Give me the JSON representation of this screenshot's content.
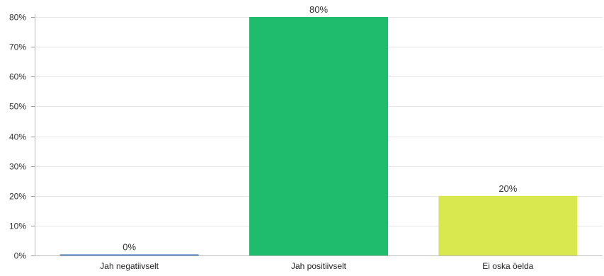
{
  "chart_data": {
    "type": "bar",
    "title": "",
    "xlabel": "",
    "ylabel": "",
    "categories": [
      "Jah negatiivselt",
      "Jah positiivselt",
      "Ei oska öelda"
    ],
    "values": [
      0,
      80,
      20
    ],
    "value_labels": [
      "0%",
      "80%",
      "20%"
    ],
    "colors": [
      "#2f6fba",
      "#1fbc6e",
      "#d9e84f"
    ],
    "ylim": [
      0,
      80
    ],
    "yticks": [
      0,
      10,
      20,
      30,
      40,
      50,
      60,
      70,
      80
    ],
    "ytick_labels": [
      "0%",
      "10%",
      "20%",
      "30%",
      "40%",
      "50%",
      "60%",
      "70%",
      "80%"
    ],
    "grid": true,
    "legend": "none"
  }
}
